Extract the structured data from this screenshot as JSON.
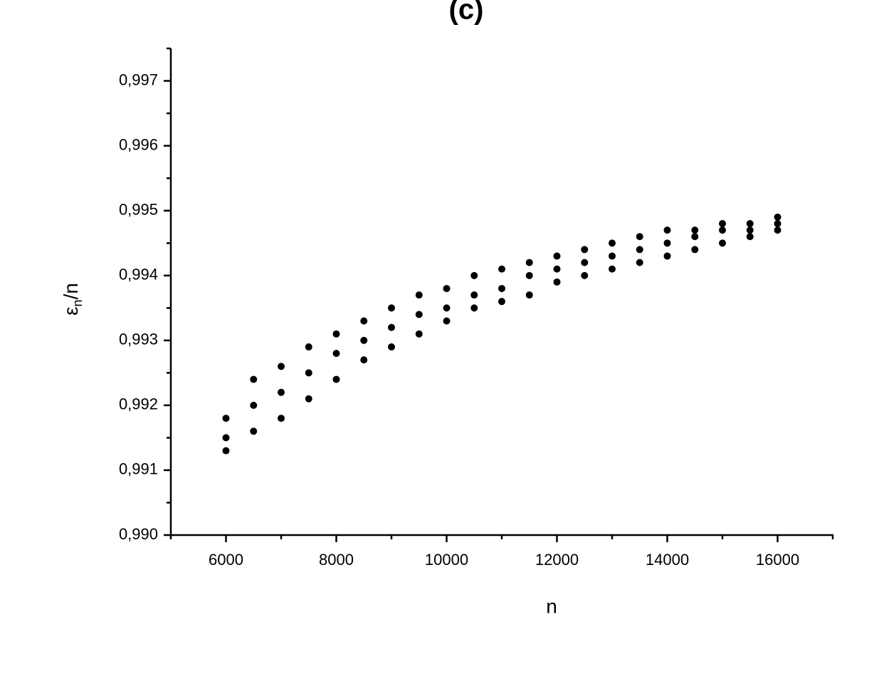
{
  "chart_data": {
    "type": "scatter",
    "title": "(c)",
    "xlabel": "n",
    "ylabel_parts": [
      "ε",
      "n",
      "/n"
    ],
    "color": "#000000",
    "xlim": [
      5000,
      17000
    ],
    "xticks": [
      6000,
      8000,
      10000,
      12000,
      14000,
      16000
    ],
    "xminorticks": [
      5000,
      7000,
      9000,
      11000,
      13000,
      15000,
      17000
    ],
    "ylim": [
      0.99,
      0.9975
    ],
    "yticks": [
      {
        "value": 0.99,
        "label": "0,990"
      },
      {
        "value": 0.991,
        "label": "0,991"
      },
      {
        "value": 0.992,
        "label": "0,992"
      },
      {
        "value": 0.993,
        "label": "0,993"
      },
      {
        "value": 0.994,
        "label": "0,994"
      },
      {
        "value": 0.995,
        "label": "0,995"
      },
      {
        "value": 0.996,
        "label": "0,996"
      },
      {
        "value": 0.997,
        "label": "0,997"
      }
    ],
    "yminorticks": [
      0.9905,
      0.9915,
      0.9925,
      0.9935,
      0.9945,
      0.9955,
      0.9965,
      0.9975
    ],
    "x": [
      6000,
      6000,
      6000,
      6500,
      6500,
      6500,
      7000,
      7000,
      7000,
      7500,
      7500,
      7500,
      8000,
      8000,
      8000,
      8500,
      8500,
      8500,
      9000,
      9000,
      9000,
      9500,
      9500,
      9500,
      10000,
      10000,
      10000,
      10500,
      10500,
      10500,
      11000,
      11000,
      11000,
      11500,
      11500,
      11500,
      12000,
      12000,
      12000,
      12500,
      12500,
      12500,
      13000,
      13000,
      13000,
      13500,
      13500,
      13500,
      14000,
      14000,
      14000,
      14500,
      14500,
      14500,
      15000,
      15000,
      15000,
      15500,
      15500,
      15500,
      16000,
      16000,
      16000
    ],
    "y": [
      0.9913,
      0.9915,
      0.9918,
      0.9916,
      0.992,
      0.9924,
      0.9918,
      0.9922,
      0.9926,
      0.9921,
      0.9925,
      0.9929,
      0.9924,
      0.9928,
      0.9931,
      0.9927,
      0.993,
      0.9933,
      0.9929,
      0.9932,
      0.9935,
      0.9931,
      0.9934,
      0.9937,
      0.9933,
      0.9935,
      0.9938,
      0.9935,
      0.9937,
      0.994,
      0.9936,
      0.9938,
      0.9941,
      0.9937,
      0.994,
      0.9942,
      0.9939,
      0.9941,
      0.9943,
      0.994,
      0.9942,
      0.9944,
      0.9941,
      0.9943,
      0.9945,
      0.9942,
      0.9944,
      0.9946,
      0.9943,
      0.9945,
      0.9947,
      0.9944,
      0.9946,
      0.9947,
      0.9945,
      0.9947,
      0.9948,
      0.9946,
      0.9947,
      0.9948,
      0.9947,
      0.9948,
      0.9949
    ]
  }
}
